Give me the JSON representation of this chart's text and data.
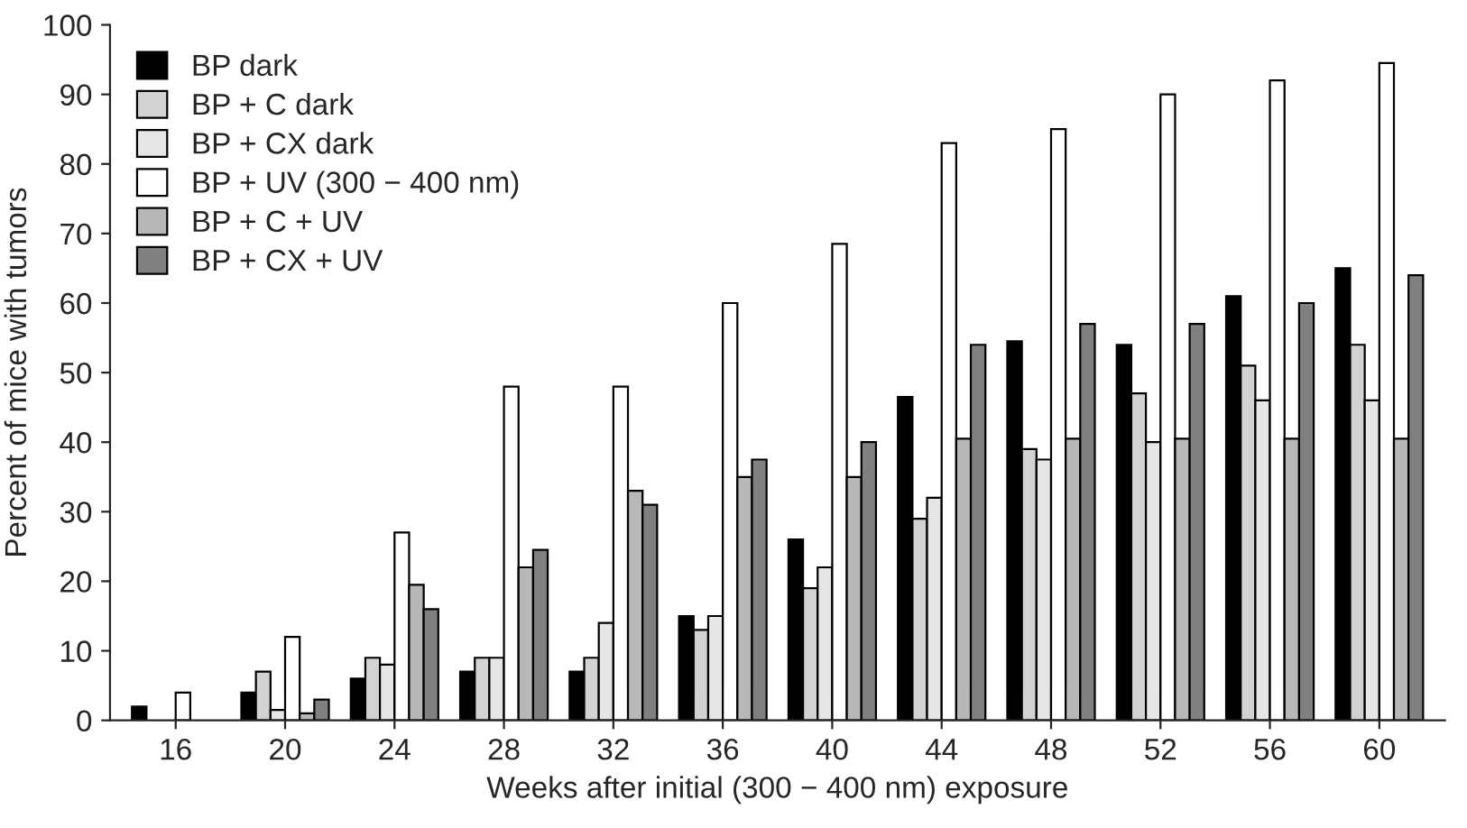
{
  "chart_data": {
    "type": "bar",
    "xlabel": "Weeks after initial (300 − 400 nm) exposure",
    "ylabel": "Percent of mice with tumors",
    "categories": [
      "16",
      "20",
      "24",
      "28",
      "32",
      "36",
      "40",
      "44",
      "48",
      "52",
      "56",
      "60"
    ],
    "series": [
      {
        "name": "BP dark",
        "color": "#000000",
        "values": [
          2,
          4,
          6,
          7,
          7,
          15,
          26,
          46.5,
          54.5,
          54,
          61,
          65
        ]
      },
      {
        "name": "BP + C dark",
        "color": "#d2d2d2",
        "values": [
          null,
          7,
          9,
          9,
          9,
          13,
          19,
          29,
          39,
          47,
          51,
          54
        ]
      },
      {
        "name": "BP + CX dark",
        "color": "#e6e6e6",
        "values": [
          null,
          1.5,
          8,
          9,
          14,
          15,
          22,
          32,
          37.5,
          40,
          46,
          46
        ]
      },
      {
        "name": "BP + UV (300 − 400 nm)",
        "color": "#ffffff",
        "values": [
          4,
          12,
          27,
          48,
          48,
          60,
          68.5,
          83,
          85,
          90,
          92,
          94.5
        ]
      },
      {
        "name": "BP + C + UV",
        "color": "#b8b8b8",
        "values": [
          null,
          1,
          19.5,
          22,
          33,
          35,
          35,
          40.5,
          40.5,
          40.5,
          40.5,
          40.5
        ]
      },
      {
        "name": "BP + CX + UV",
        "color": "#808080",
        "values": [
          null,
          3,
          16,
          24.5,
          31,
          37.5,
          40,
          54,
          57,
          57,
          60,
          64
        ]
      }
    ],
    "ylim": [
      0,
      100
    ],
    "yticks": [
      0,
      10,
      20,
      30,
      40,
      50,
      60,
      70,
      80,
      90,
      100
    ],
    "grid": false,
    "legend": "top left"
  }
}
